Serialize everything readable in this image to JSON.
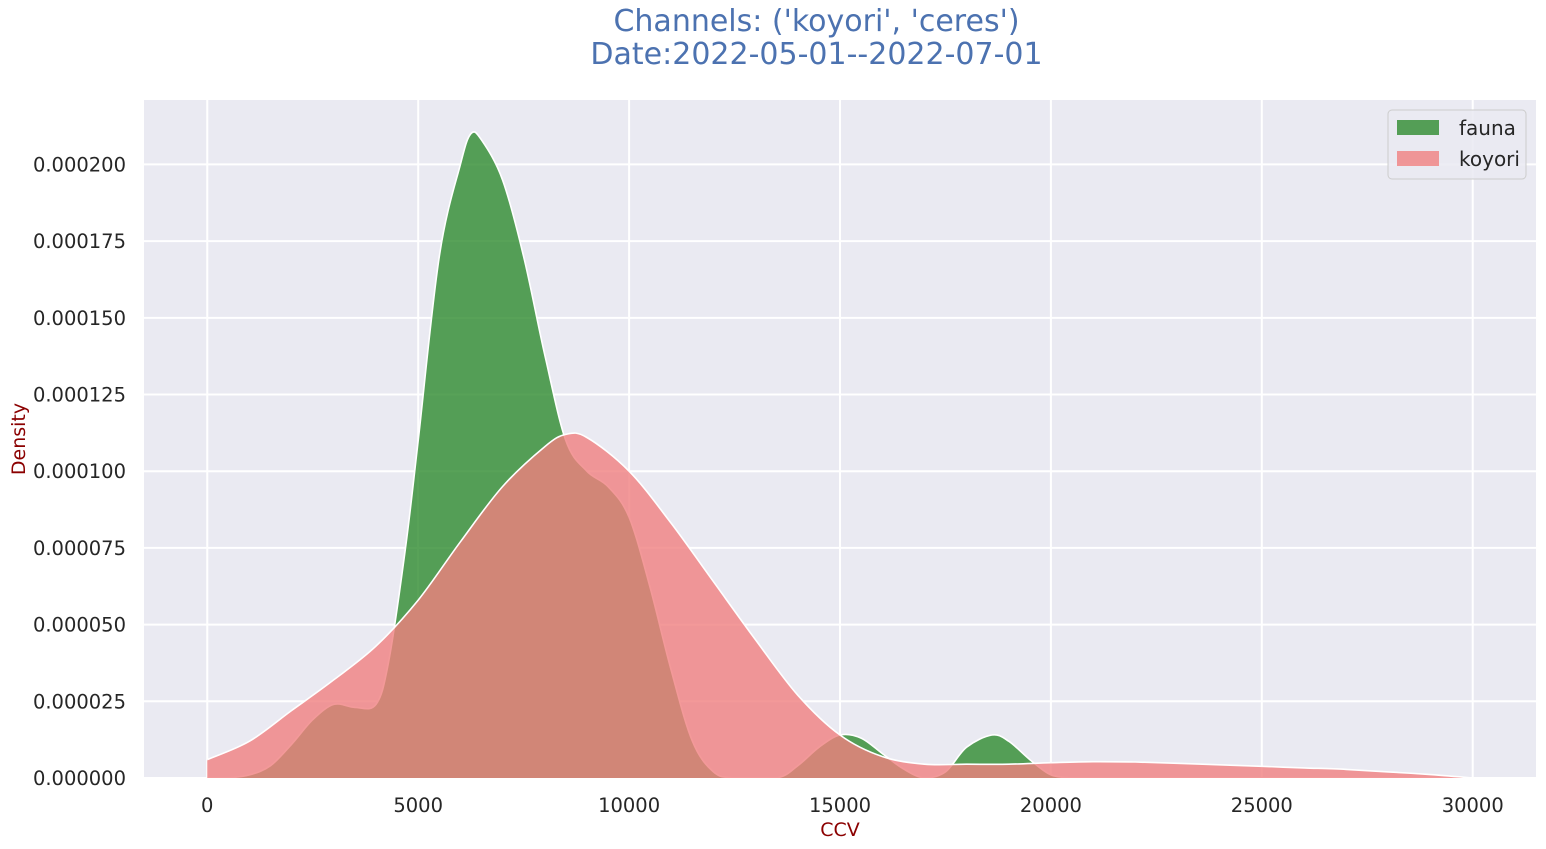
{
  "title_line1": "Channels: ('koyori', 'ceres')",
  "title_line2": "Date:2022-05-01--2022-07-01",
  "chart_data": {
    "type": "area",
    "subtype": "kde density",
    "xlabel": "CCV",
    "ylabel": "Density",
    "xlim": [
      -1500,
      31500
    ],
    "ylim": [
      0,
      0.000221
    ],
    "xticks": [
      0,
      5000,
      10000,
      15000,
      20000,
      25000,
      30000
    ],
    "yticks": [
      0.0,
      2.5e-05,
      5e-05,
      7.5e-05,
      0.0001,
      0.000125,
      0.00015,
      0.000175,
      0.0002
    ],
    "ytick_labels": [
      "0.000000",
      "0.000025",
      "0.000050",
      "0.000075",
      "0.000100",
      "0.000125",
      "0.000150",
      "0.000175",
      "0.000200"
    ],
    "grid": true,
    "background": "#eaeaf2",
    "legend_position": "upper right",
    "series": [
      {
        "name": "fauna",
        "color": "#2e8b2e",
        "points": [
          [
            500,
            0.0
          ],
          [
            1000,
            1e-06
          ],
          [
            1500,
            4e-06
          ],
          [
            2000,
            1.1e-05
          ],
          [
            2500,
            1.9e-05
          ],
          [
            3000,
            2.4e-05
          ],
          [
            3500,
            2.3e-05
          ],
          [
            4000,
            2.4e-05
          ],
          [
            4300,
            3.8e-05
          ],
          [
            4700,
            7.5e-05
          ],
          [
            5000,
            0.00011
          ],
          [
            5500,
            0.00017
          ],
          [
            6000,
            0.0002
          ],
          [
            6250,
            0.00021
          ],
          [
            6500,
            0.000208
          ],
          [
            7000,
            0.000195
          ],
          [
            7500,
            0.00017
          ],
          [
            8000,
            0.000138
          ],
          [
            8500,
            0.00011
          ],
          [
            9000,
            0.0001
          ],
          [
            9500,
            9.5e-05
          ],
          [
            10000,
            8.5e-05
          ],
          [
            10500,
            6.2e-05
          ],
          [
            11000,
            3.5e-05
          ],
          [
            11500,
            1.2e-05
          ],
          [
            12000,
            2e-06
          ],
          [
            12500,
            0.0
          ],
          [
            13500,
            0.0
          ],
          [
            14000,
            4e-06
          ],
          [
            14500,
            1e-05
          ],
          [
            15000,
            1.4e-05
          ],
          [
            15500,
            1.3e-05
          ],
          [
            16000,
            8e-06
          ],
          [
            16500,
            3e-06
          ],
          [
            17000,
            0.0
          ],
          [
            17500,
            2e-06
          ],
          [
            18000,
            1e-05
          ],
          [
            18600,
            1.4e-05
          ],
          [
            19000,
            1.2e-05
          ],
          [
            19500,
            6e-06
          ],
          [
            20000,
            1e-06
          ],
          [
            20500,
            0.0
          ]
        ]
      },
      {
        "name": "koyori",
        "color": "#f08080",
        "points": [
          [
            0,
            6e-06
          ],
          [
            1000,
            1.2e-05
          ],
          [
            2000,
            2.2e-05
          ],
          [
            3000,
            3.2e-05
          ],
          [
            4000,
            4.3e-05
          ],
          [
            5000,
            5.8e-05
          ],
          [
            6000,
            7.7e-05
          ],
          [
            7000,
            9.5e-05
          ],
          [
            8000,
            0.000108
          ],
          [
            8500,
            0.000112
          ],
          [
            9000,
            0.000111
          ],
          [
            10000,
            0.0001
          ],
          [
            11000,
            8.3e-05
          ],
          [
            12000,
            6.4e-05
          ],
          [
            13000,
            4.5e-05
          ],
          [
            14000,
            2.7e-05
          ],
          [
            15000,
            1.4e-05
          ],
          [
            16000,
            7e-06
          ],
          [
            17000,
            4.5e-06
          ],
          [
            18000,
            4.5e-06
          ],
          [
            19000,
            4.5e-06
          ],
          [
            20000,
            5e-06
          ],
          [
            21000,
            5.3e-06
          ],
          [
            22000,
            5.2e-06
          ],
          [
            23000,
            4.8e-06
          ],
          [
            24000,
            4.3e-06
          ],
          [
            25000,
            3.8e-06
          ],
          [
            26000,
            3.3e-06
          ],
          [
            27000,
            2.8e-06
          ],
          [
            28000,
            2e-06
          ],
          [
            29000,
            1.1e-06
          ],
          [
            30000,
            0.0
          ]
        ]
      }
    ]
  }
}
